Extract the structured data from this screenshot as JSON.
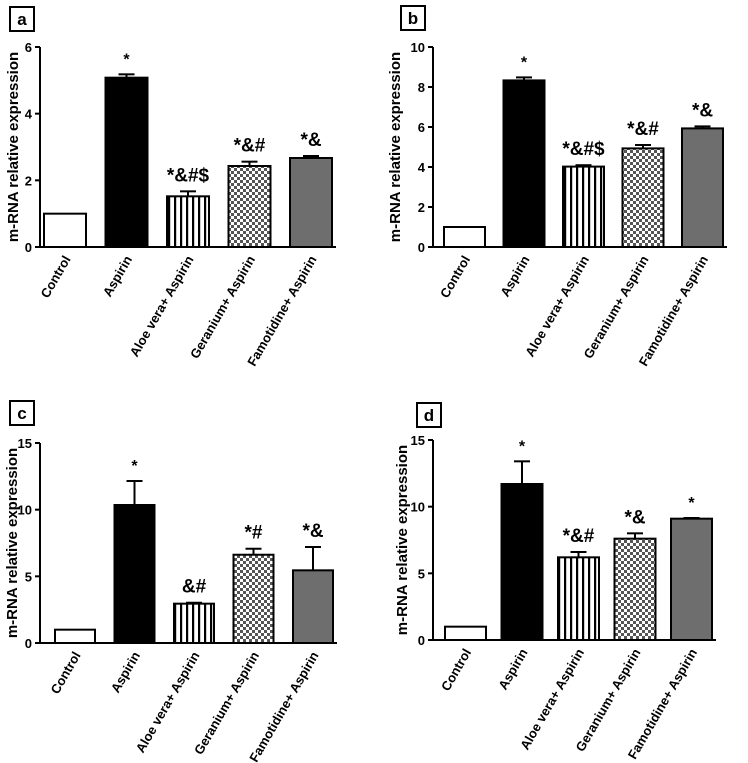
{
  "colors": {
    "control": "#ffffff",
    "aspirin": "#000000",
    "geranium_dark": "#555555",
    "geranium_light": "#ffffff",
    "famotidine": "#6e6e6e",
    "axis": "#000000"
  },
  "chart_data": [
    {
      "panel": "a",
      "type": "bar",
      "ylabel": "m-RNA relative expression",
      "ylim": [
        0,
        6
      ],
      "yticks": [
        0,
        2,
        4,
        6
      ],
      "categories": [
        "Control",
        "Aspirin",
        "Aloe vera+ Aspirin",
        "Geranium+ Aspirin",
        "Famotidine+ Aspirin"
      ],
      "patterns": [
        "white",
        "black",
        "vstripes",
        "checker",
        "gray"
      ],
      "values": [
        1.0,
        5.08,
        1.52,
        2.43,
        2.67
      ],
      "errors": [
        0,
        0.1,
        0.15,
        0.13,
        0.06
      ],
      "annotations": [
        "",
        "*",
        "*&#$",
        "*&#",
        "*&"
      ]
    },
    {
      "panel": "b",
      "type": "bar",
      "ylabel": "m-RNA relative expression",
      "ylim": [
        0,
        10
      ],
      "yticks": [
        0,
        2,
        4,
        6,
        8,
        10
      ],
      "categories": [
        "Control",
        "Aspirin",
        "Aloe vera+ Aspirin",
        "Geranium+ Aspirin",
        "Famotidine+ Aspirin"
      ],
      "patterns": [
        "white",
        "black",
        "vstripes",
        "checker",
        "gray"
      ],
      "values": [
        1.0,
        8.33,
        4.02,
        4.93,
        5.93
      ],
      "errors": [
        0,
        0.15,
        0.07,
        0.17,
        0.1
      ],
      "annotations": [
        "",
        "*",
        "*&#$",
        "*&#",
        "*&"
      ]
    },
    {
      "panel": "c",
      "type": "bar",
      "ylabel": "m-RNA relative expression",
      "ylim": [
        0,
        15
      ],
      "yticks": [
        0,
        5,
        10,
        15
      ],
      "categories": [
        "Control",
        "Aspirin",
        "Aloe vera+ Aspirin",
        "Geranium+ Aspirin",
        "Famotidine+ Aspirin"
      ],
      "patterns": [
        "white",
        "black",
        "vstripes",
        "checker",
        "gray"
      ],
      "values": [
        1.0,
        10.35,
        2.95,
        6.62,
        5.45
      ],
      "errors": [
        0,
        1.8,
        0.07,
        0.45,
        1.75
      ],
      "annotations": [
        "",
        "*",
        "&#",
        "*#",
        "*&"
      ]
    },
    {
      "panel": "d",
      "type": "bar",
      "ylabel": "m-RNA relative expression",
      "ylim": [
        0,
        15
      ],
      "yticks": [
        0,
        5,
        10,
        15
      ],
      "categories": [
        "Control",
        "Aspirin",
        "Aloe vera+ Aspirin",
        "Geranium+ Aspirin",
        "Famotidine+ Aspirin"
      ],
      "patterns": [
        "white",
        "black",
        "vstripes",
        "checker",
        "gray"
      ],
      "values": [
        1.0,
        11.7,
        6.2,
        7.6,
        9.1
      ],
      "errors": [
        0,
        1.7,
        0.4,
        0.4,
        0.05
      ],
      "annotations": [
        "",
        "*",
        "*&#",
        "*&",
        "*"
      ]
    }
  ]
}
